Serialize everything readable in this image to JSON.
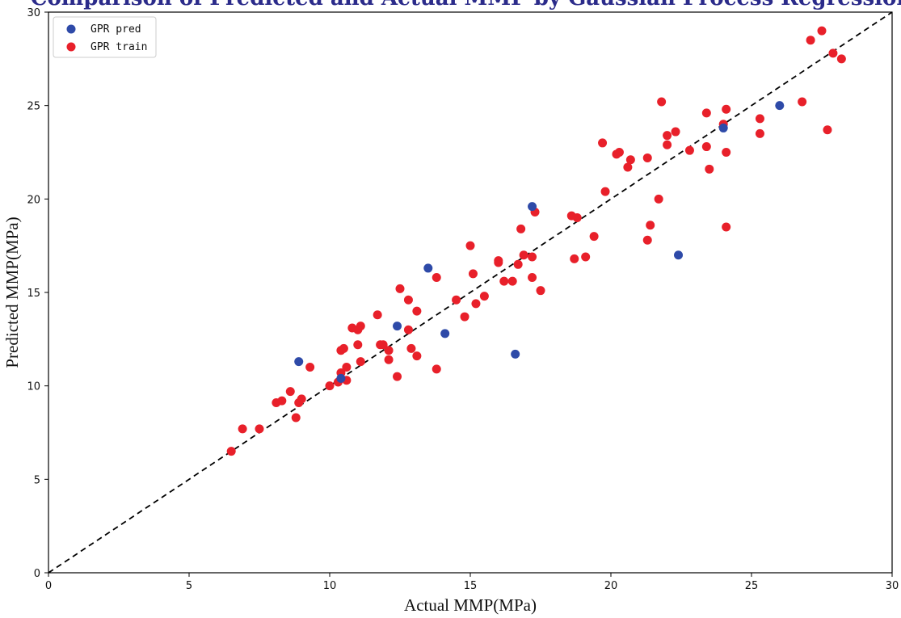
{
  "chart_data": {
    "type": "scatter",
    "title": "Comparison of Predicted and Actual MMP by Gaussian Process Regression",
    "xlabel": "Actual MMP(MPa)",
    "ylabel": "Predicted MMP(MPa)",
    "xlim": [
      0,
      30
    ],
    "ylim": [
      0,
      30
    ],
    "xticks": [
      "0",
      "5",
      "10",
      "15",
      "20",
      "25",
      "30"
    ],
    "yticks": [
      "0",
      "5",
      "10",
      "15",
      "20",
      "25",
      "30"
    ],
    "legend_position": "top-left",
    "reference_line": {
      "from": [
        0,
        0
      ],
      "to": [
        30,
        30
      ],
      "style": "dashed",
      "color": "#000000"
    },
    "series": [
      {
        "name": "GPR pred",
        "color": "#2e4aa8",
        "points": [
          [
            8.9,
            11.3
          ],
          [
            10.4,
            10.4
          ],
          [
            12.4,
            13.2
          ],
          [
            13.5,
            16.3
          ],
          [
            14.1,
            12.8
          ],
          [
            16.6,
            11.7
          ],
          [
            17.2,
            19.6
          ],
          [
            22.4,
            17.0
          ],
          [
            24.0,
            23.8
          ],
          [
            26.0,
            25.0
          ]
        ]
      },
      {
        "name": "GPR train",
        "color": "#e8202a",
        "points": [
          [
            6.5,
            6.5
          ],
          [
            6.9,
            7.7
          ],
          [
            7.5,
            7.7
          ],
          [
            8.1,
            9.1
          ],
          [
            8.3,
            9.2
          ],
          [
            8.6,
            9.7
          ],
          [
            8.8,
            8.3
          ],
          [
            8.9,
            9.1
          ],
          [
            9.0,
            9.3
          ],
          [
            9.3,
            11.0
          ],
          [
            10.0,
            10.0
          ],
          [
            10.3,
            10.2
          ],
          [
            10.4,
            10.7
          ],
          [
            10.4,
            11.9
          ],
          [
            10.5,
            12.0
          ],
          [
            10.6,
            11.0
          ],
          [
            10.6,
            10.3
          ],
          [
            10.8,
            13.1
          ],
          [
            11.0,
            13.0
          ],
          [
            11.0,
            12.2
          ],
          [
            11.1,
            13.2
          ],
          [
            11.1,
            11.3
          ],
          [
            11.7,
            13.8
          ],
          [
            11.8,
            12.2
          ],
          [
            11.9,
            12.2
          ],
          [
            12.1,
            11.9
          ],
          [
            12.1,
            11.4
          ],
          [
            12.4,
            10.5
          ],
          [
            12.5,
            15.2
          ],
          [
            12.8,
            14.6
          ],
          [
            12.8,
            13.0
          ],
          [
            12.9,
            12.0
          ],
          [
            13.1,
            14.0
          ],
          [
            13.1,
            11.6
          ],
          [
            13.8,
            15.8
          ],
          [
            13.8,
            10.9
          ],
          [
            14.5,
            14.6
          ],
          [
            14.8,
            13.7
          ],
          [
            15.0,
            17.5
          ],
          [
            15.1,
            16.0
          ],
          [
            15.2,
            14.4
          ],
          [
            15.5,
            14.8
          ],
          [
            16.0,
            16.6
          ],
          [
            16.0,
            16.7
          ],
          [
            16.2,
            15.6
          ],
          [
            16.5,
            15.6
          ],
          [
            16.7,
            16.5
          ],
          [
            16.8,
            18.4
          ],
          [
            16.9,
            17.0
          ],
          [
            17.2,
            15.8
          ],
          [
            17.2,
            16.9
          ],
          [
            17.3,
            19.3
          ],
          [
            17.5,
            15.1
          ],
          [
            18.6,
            19.1
          ],
          [
            18.7,
            16.8
          ],
          [
            18.8,
            19.0
          ],
          [
            19.1,
            16.9
          ],
          [
            19.4,
            18.0
          ],
          [
            19.7,
            23.0
          ],
          [
            19.8,
            20.4
          ],
          [
            20.2,
            22.4
          ],
          [
            20.3,
            22.5
          ],
          [
            20.6,
            21.7
          ],
          [
            20.7,
            22.1
          ],
          [
            21.3,
            22.2
          ],
          [
            21.3,
            17.8
          ],
          [
            21.4,
            18.6
          ],
          [
            21.7,
            20.0
          ],
          [
            21.8,
            25.2
          ],
          [
            22.0,
            23.4
          ],
          [
            22.0,
            22.9
          ],
          [
            22.3,
            23.6
          ],
          [
            22.8,
            22.6
          ],
          [
            23.4,
            22.8
          ],
          [
            23.4,
            24.6
          ],
          [
            23.5,
            21.6
          ],
          [
            24.0,
            24.0
          ],
          [
            24.1,
            24.8
          ],
          [
            24.1,
            22.5
          ],
          [
            24.1,
            18.5
          ],
          [
            25.3,
            24.3
          ],
          [
            25.3,
            23.5
          ],
          [
            26.8,
            25.2
          ],
          [
            27.1,
            28.5
          ],
          [
            27.5,
            29.0
          ],
          [
            27.7,
            23.7
          ],
          [
            27.9,
            27.8
          ],
          [
            28.2,
            27.5
          ]
        ]
      }
    ]
  }
}
